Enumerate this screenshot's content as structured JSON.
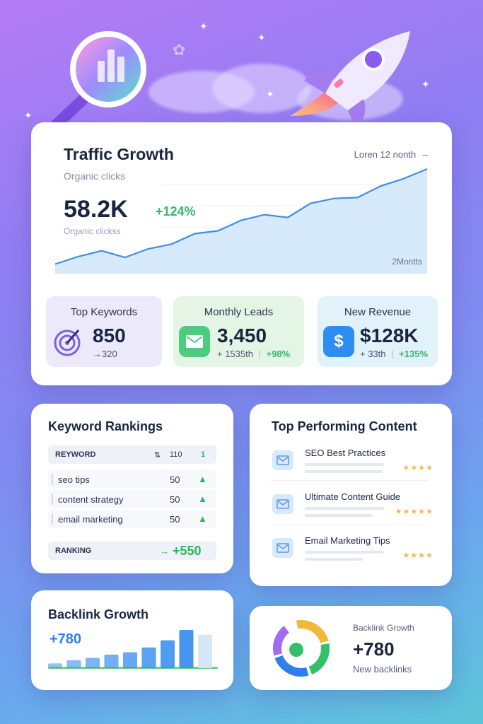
{
  "traffic": {
    "title": "Traffic Growth",
    "subtitle": "Organic clicks",
    "period": "Loren 12 nonth",
    "value": "58.2K",
    "change": "+124%",
    "subtitle2": "Organic clickss",
    "axis_label": "2Montts",
    "line_color": "#3f8fe0",
    "area_color": "#cfe6fb"
  },
  "chart_data": [
    {
      "type": "area",
      "title": "Traffic Growth",
      "x": [
        1,
        2,
        3,
        4,
        5,
        6,
        7,
        8,
        9,
        10,
        11,
        12,
        13,
        14,
        15,
        16,
        17
      ],
      "series": [
        {
          "values": [
            0.1,
            0.18,
            0.24,
            0.17,
            0.26,
            0.31,
            0.42,
            0.45,
            0.56,
            0.62,
            0.59,
            0.74,
            0.79,
            0.8,
            0.92,
            1.0,
            1.1
          ]
        }
      ],
      "grid": true
    },
    {
      "type": "bar",
      "title": "Backlink Growth",
      "categories": [
        "1",
        "2",
        "3",
        "4",
        "5",
        "6",
        "7",
        "8",
        "9"
      ],
      "values": [
        6,
        10,
        13,
        17,
        20,
        26,
        35,
        48,
        42
      ]
    }
  ],
  "stats": [
    {
      "label": "Top Keywords",
      "value": "850",
      "sub": "→320",
      "icon": "target-icon"
    },
    {
      "label": "Monthly Leads",
      "value": "3,450",
      "sub": "+ 1535th",
      "sub_sep": "|",
      "gain": "+98%",
      "icon": "mail-icon"
    },
    {
      "label": "New Revenue",
      "value": "$128K",
      "sub": "+ 33th",
      "sub_sep": "|",
      "gain": "+135%",
      "icon": "dollar-icon"
    }
  ],
  "keywords": {
    "title": "Keyword Rankings",
    "header": {
      "col1": "REYWORD",
      "col2": "⇅",
      "col3": "110",
      "col4": "1"
    },
    "rows": [
      {
        "name": "seo tips",
        "num": "50",
        "arrow": "▲"
      },
      {
        "name": "content strategy",
        "num": "50",
        "arrow": "▲"
      },
      {
        "name": "email marketing",
        "num": "50",
        "arrow": "▲"
      }
    ],
    "footer": {
      "label": "RANKING",
      "arrows": "→",
      "value": "+550"
    }
  },
  "content": {
    "title": "Top Performing Content",
    "items": [
      {
        "name": "SEO Best Practices",
        "stars": "★★★★"
      },
      {
        "name": "Ultimate Content Guide",
        "stars": "★★★★★"
      },
      {
        "name": "Email Marketing Tips",
        "stars": "★★★★"
      }
    ]
  },
  "backlinks": {
    "title": "Backlink Growth",
    "value": "+780",
    "bar_color": "#3a8ff0"
  },
  "backlink_ring": {
    "label": "Backlink Growth",
    "value": "+780",
    "caption": "New backlinks",
    "colors": [
      "#f0b93a",
      "#34c06a",
      "#2d7ff0",
      "#a06cf0"
    ]
  }
}
